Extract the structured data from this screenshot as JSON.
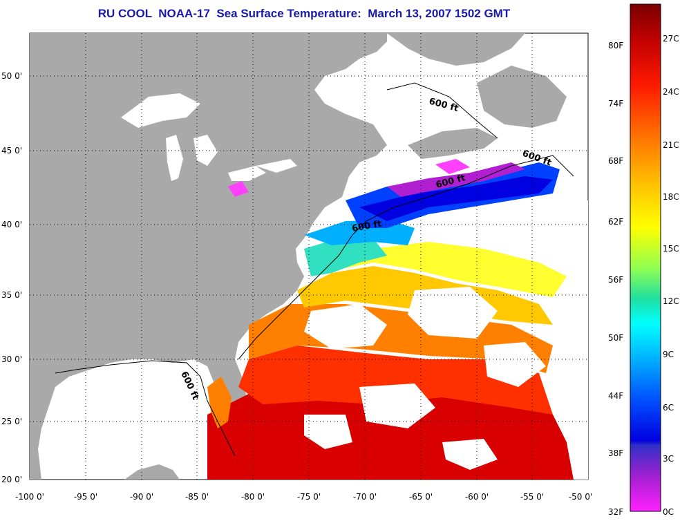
{
  "title": "RU COOL  NOAA-17  Sea Surface Temperature:  March 13, 2007 1502 GMT",
  "map": {
    "lat_ticks": [
      "50 0'",
      "45 0'",
      "40 0'",
      "35 0'",
      "30 0'",
      "25 0'",
      "20 0'"
    ],
    "lon_ticks": [
      "-100 0'",
      "-95 0'",
      "-90 0'",
      "-85 0'",
      "-80 0'",
      "-75 0'",
      "-70 0'",
      "-65 0'",
      "-60 0'",
      "-55 0'",
      "-50 0'"
    ],
    "contour_labels": [
      "600 ft",
      "600 ft",
      "600 ft",
      "600 ft",
      "600 ft"
    ],
    "colors": {
      "land": "#a9a9a9",
      "cloud": "#ffffff"
    }
  },
  "colorbar": {
    "f_labels": [
      "80F",
      "74F",
      "68F",
      "62F",
      "56F",
      "50F",
      "44F",
      "38F",
      "32F"
    ],
    "c_labels": [
      "27C",
      "24C",
      "21C",
      "18C",
      "15C",
      "12C",
      "9C",
      "6C",
      "3C",
      "0C"
    ],
    "colors": [
      "#7a0000",
      "#d00000",
      "#ff2a00",
      "#ff7a00",
      "#ffc000",
      "#ffff00",
      "#a0ff40",
      "#20e0a0",
      "#00ffff",
      "#00a0ff",
      "#0040ff",
      "#0000e0",
      "#a020d0",
      "#ff20ff"
    ]
  }
}
